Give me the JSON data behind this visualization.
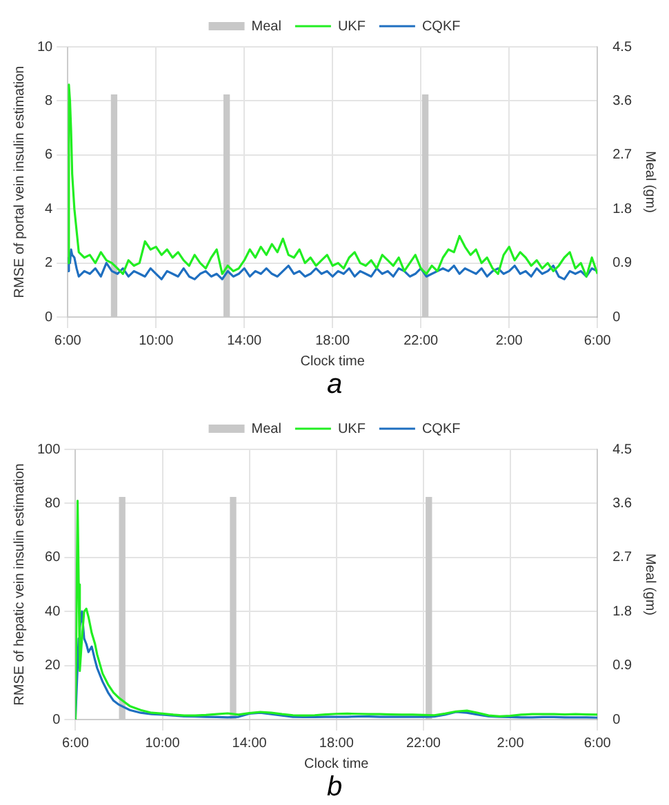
{
  "chart_data": [
    {
      "type": "line",
      "xlabel": "Clock time",
      "ylabel": "RMSE of portal vein insulin estimation",
      "y2label": "Meal (gm)",
      "annotations": [
        "a"
      ],
      "x": [
        "--01-01T06:00",
        "--01-01T06:03",
        "--01-01T06:06",
        "--01-01T06:09",
        "--01-01T06:12",
        "--01-01T06:18",
        "--01-01T06:24",
        "--01-01T06:30",
        "--01-01T06:45",
        "--01-01T07:00",
        "--01-01T07:15",
        "--01-01T07:30",
        "--01-01T07:45",
        "--01-01T08:00",
        "--01-01T08:15",
        "--01-01T08:30",
        "--01-01T08:45",
        "--01-01T09:00",
        "--01-01T09:15",
        "--01-01T09:30",
        "--01-01T09:45",
        "--01-01T10:00",
        "--01-01T10:15",
        "--01-01T10:30",
        "--01-01T10:45",
        "--01-01T11:00",
        "--01-01T11:15",
        "--01-01T11:30",
        "--01-01T11:45",
        "--01-01T12:00",
        "--01-01T12:15",
        "--01-01T12:30",
        "--01-01T12:45",
        "--01-01T13:00",
        "--01-01T13:15",
        "--01-01T13:30",
        "--01-01T13:45",
        "--01-01T14:00",
        "--01-01T14:15",
        "--01-01T14:30",
        "--01-01T14:45",
        "--01-01T15:00",
        "--01-01T15:15",
        "--01-01T15:30",
        "--01-01T15:45",
        "--01-01T16:00",
        "--01-01T16:15",
        "--01-01T16:30",
        "--01-01T16:45",
        "--01-01T17:00",
        "--01-01T17:15",
        "--01-01T17:30",
        "--01-01T17:45",
        "--01-01T18:00",
        "--01-01T18:15",
        "--01-01T18:30",
        "--01-01T18:45",
        "--01-01T19:00",
        "--01-01T19:15",
        "--01-01T19:30",
        "--01-01T19:45",
        "--01-01T20:00",
        "--01-01T20:15",
        "--01-01T20:30",
        "--01-01T20:45",
        "--01-01T21:00",
        "--01-01T21:15",
        "--01-01T21:30",
        "--01-01T21:45",
        "--01-01T22:00",
        "--01-01T22:15",
        "--01-01T22:30",
        "--01-01T22:45",
        "--01-01T23:00",
        "--01-01T23:15",
        "--01-01T23:30",
        "--01-01T23:45",
        "--01-02T00:00",
        "--01-02T00:15",
        "--01-02T00:30",
        "--01-02T00:45",
        "--01-02T01:00",
        "--01-02T01:15",
        "--01-02T01:30",
        "--01-02T01:45",
        "--01-02T02:00",
        "--01-02T02:15",
        "--01-02T02:30",
        "--01-02T02:45",
        "--01-02T03:00",
        "--01-02T03:15",
        "--01-02T03:30",
        "--01-02T03:45",
        "--01-02T04:00",
        "--01-02T04:15",
        "--01-02T04:30",
        "--01-02T04:45",
        "--01-02T05:00",
        "--01-02T05:15",
        "--01-02T05:30",
        "--01-02T05:45",
        "--01-02T06:00"
      ],
      "series": [
        {
          "name": "Meal",
          "type": "bar",
          "axis": "y2",
          "color": "#c8c8c8",
          "x": [
            "--01-01T08:06",
            "--01-01T13:12",
            "--01-01T22:12"
          ],
          "values": [
            3.7,
            3.7,
            3.7
          ]
        },
        {
          "name": "UKF",
          "color": "#22ee22",
          "values": [
            2.0,
            8.6,
            8.0,
            6.9,
            5.3,
            4.0,
            3.2,
            2.4,
            2.2,
            2.3,
            2.0,
            2.4,
            2.1,
            2.0,
            1.8,
            1.6,
            2.1,
            1.9,
            2.0,
            2.8,
            2.5,
            2.6,
            2.3,
            2.5,
            2.2,
            2.4,
            2.1,
            1.9,
            2.3,
            2.0,
            1.8,
            2.2,
            2.5,
            1.6,
            1.9,
            1.7,
            1.8,
            2.1,
            2.5,
            2.2,
            2.6,
            2.3,
            2.7,
            2.4,
            2.9,
            2.3,
            2.2,
            2.5,
            2.0,
            2.2,
            1.9,
            2.1,
            2.3,
            1.9,
            2.0,
            1.8,
            2.2,
            2.4,
            2.0,
            1.9,
            2.1,
            1.8,
            2.3,
            2.1,
            1.9,
            2.2,
            1.7,
            2.0,
            2.3,
            1.8,
            1.6,
            1.9,
            1.7,
            2.2,
            2.5,
            2.4,
            3.0,
            2.6,
            2.3,
            2.5,
            2.0,
            2.2,
            1.8,
            1.6,
            2.3,
            2.6,
            2.1,
            2.4,
            2.2,
            1.9,
            2.1,
            1.8,
            2.0,
            1.7,
            1.9,
            2.2,
            2.4,
            1.8,
            2.0,
            1.5,
            2.2,
            1.6
          ]
        },
        {
          "name": "CQKF",
          "color": "#1f6fc0",
          "values": [
            1.7,
            2.2,
            2.0,
            2.5,
            2.3,
            2.2,
            1.8,
            1.5,
            1.7,
            1.6,
            1.8,
            1.5,
            2.0,
            1.7,
            1.6,
            1.8,
            1.5,
            1.7,
            1.6,
            1.5,
            1.8,
            1.6,
            1.4,
            1.7,
            1.6,
            1.5,
            1.8,
            1.5,
            1.4,
            1.6,
            1.7,
            1.5,
            1.6,
            1.4,
            1.7,
            1.5,
            1.6,
            1.8,
            1.5,
            1.7,
            1.6,
            1.8,
            1.6,
            1.5,
            1.7,
            1.9,
            1.6,
            1.7,
            1.5,
            1.6,
            1.8,
            1.6,
            1.7,
            1.5,
            1.7,
            1.6,
            1.8,
            1.5,
            1.7,
            1.6,
            1.5,
            1.8,
            1.6,
            1.7,
            1.5,
            1.8,
            1.7,
            1.5,
            1.6,
            1.8,
            1.5,
            1.6,
            1.7,
            1.8,
            1.7,
            1.9,
            1.6,
            1.8,
            1.7,
            1.6,
            1.8,
            1.5,
            1.7,
            1.8,
            1.6,
            1.7,
            1.9,
            1.6,
            1.7,
            1.5,
            1.8,
            1.6,
            1.7,
            1.9,
            1.5,
            1.4,
            1.7,
            1.6,
            1.7,
            1.5,
            1.8,
            1.7
          ]
        }
      ],
      "xlim": [
        "--01-01T06:00",
        "--01-02T06:00"
      ],
      "xticks": [
        {
          "value": "--01-01T06:00",
          "label": "6:00"
        },
        {
          "value": "--01-01T10:00",
          "label": "10:00"
        },
        {
          "value": "--01-01T14:00",
          "label": "14:00"
        },
        {
          "value": "--01-01T18:00",
          "label": "18:00"
        },
        {
          "value": "--01-01T22:00",
          "label": "22:00"
        },
        {
          "value": "--01-02T02:00",
          "label": "2:00"
        },
        {
          "value": "--01-02T06:00",
          "label": "6:00"
        }
      ],
      "ylim": [
        0,
        10
      ],
      "yticks": [
        0,
        2,
        4,
        6,
        8,
        10
      ],
      "y2lim": [
        0,
        4.5
      ],
      "y2ticks": [
        0,
        0.9,
        1.8,
        2.7,
        3.6,
        4.5
      ],
      "grid": true,
      "legend": "top",
      "marker": "none"
    },
    {
      "type": "line",
      "xlabel": "Clock time",
      "ylabel": "RMSE of hepatic vein insulin estimation",
      "y2label": "Meal (gm)",
      "annotations": [
        "b"
      ],
      "x": [
        "--01-01T06:00",
        "--01-01T06:03",
        "--01-01T06:06",
        "--01-01T06:09",
        "--01-01T06:12",
        "--01-01T06:18",
        "--01-01T06:24",
        "--01-01T06:30",
        "--01-01T06:36",
        "--01-01T06:45",
        "--01-01T06:54",
        "--01-01T07:00",
        "--01-01T07:15",
        "--01-01T07:30",
        "--01-01T07:45",
        "--01-01T08:00",
        "--01-01T08:30",
        "--01-01T09:00",
        "--01-01T09:30",
        "--01-01T10:00",
        "--01-01T10:30",
        "--01-01T11:00",
        "--01-01T11:30",
        "--01-01T12:00",
        "--01-01T12:30",
        "--01-01T13:00",
        "--01-01T13:30",
        "--01-01T14:00",
        "--01-01T14:30",
        "--01-01T15:00",
        "--01-01T15:30",
        "--01-01T16:00",
        "--01-01T16:30",
        "--01-01T17:00",
        "--01-01T17:30",
        "--01-01T18:00",
        "--01-01T18:30",
        "--01-01T19:00",
        "--01-01T19:30",
        "--01-01T20:00",
        "--01-01T20:30",
        "--01-01T21:00",
        "--01-01T21:30",
        "--01-01T22:00",
        "--01-01T22:30",
        "--01-01T23:00",
        "--01-01T23:30",
        "--01-02T00:00",
        "--01-02T00:30",
        "--01-02T01:00",
        "--01-02T01:30",
        "--01-02T02:00",
        "--01-02T02:30",
        "--01-02T03:00",
        "--01-02T03:30",
        "--01-02T04:00",
        "--01-02T04:30",
        "--01-02T05:00",
        "--01-02T05:30",
        "--01-02T06:00"
      ],
      "series": [
        {
          "name": "Meal",
          "type": "bar",
          "axis": "y2",
          "color": "#c8c8c8",
          "x": [
            "--01-01T08:09",
            "--01-01T13:15",
            "--01-01T22:15"
          ],
          "values": [
            3.7,
            3.7,
            3.7
          ]
        },
        {
          "name": "UKF",
          "color": "#22ee22",
          "values": [
            0,
            40,
            81,
            50,
            18,
            30,
            40,
            41,
            38,
            32,
            28,
            24,
            17,
            13,
            10,
            8,
            5,
            3.5,
            2.5,
            2.2,
            1.8,
            1.5,
            1.5,
            1.7,
            2.0,
            2.3,
            1.8,
            2.4,
            2.8,
            2.5,
            2.0,
            1.6,
            1.5,
            1.6,
            1.9,
            2.1,
            2.2,
            2.1,
            2.0,
            2.0,
            1.9,
            1.8,
            1.8,
            1.7,
            1.6,
            2.2,
            3.0,
            3.3,
            2.5,
            1.5,
            1.2,
            1.4,
            1.8,
            2.0,
            2.0,
            2.0,
            1.9,
            2.0,
            1.9,
            1.8
          ]
        },
        {
          "name": "CQKF",
          "color": "#1f6fc0",
          "values": [
            0,
            10,
            20,
            30,
            34,
            40,
            30,
            28,
            25,
            27,
            22,
            19,
            14,
            10,
            7,
            5.5,
            3.5,
            2.5,
            2.0,
            1.8,
            1.5,
            1.2,
            1.1,
            1.0,
            0.9,
            0.8,
            1.0,
            2.2,
            2.5,
            2.0,
            1.5,
            1.0,
            0.9,
            0.9,
            1.0,
            1.0,
            1.0,
            1.1,
            1.1,
            1.0,
            1.0,
            1.0,
            1.0,
            1.0,
            1.1,
            1.8,
            2.8,
            2.5,
            1.8,
            1.2,
            1.0,
            0.9,
            0.8,
            0.8,
            0.9,
            0.9,
            0.8,
            0.8,
            0.8,
            0.7
          ]
        }
      ],
      "xlim": [
        "--01-01T06:00",
        "--01-02T06:00"
      ],
      "xticks": [
        {
          "value": "--01-01T06:00",
          "label": "6:00"
        },
        {
          "value": "--01-01T10:00",
          "label": "10:00"
        },
        {
          "value": "--01-01T14:00",
          "label": "14:00"
        },
        {
          "value": "--01-01T18:00",
          "label": "18:00"
        },
        {
          "value": "--01-01T22:00",
          "label": "22:00"
        },
        {
          "value": "--01-02T02:00",
          "label": "2:00"
        },
        {
          "value": "--01-02T06:00",
          "label": "6:00"
        }
      ],
      "ylim": [
        0,
        100
      ],
      "yticks": [
        0,
        20,
        40,
        60,
        80,
        100
      ],
      "y2lim": [
        0,
        4.5
      ],
      "y2ticks": [
        0,
        0.9,
        1.8,
        2.7,
        3.6,
        4.5
      ],
      "grid": true,
      "legend": "top",
      "marker": "none"
    }
  ]
}
